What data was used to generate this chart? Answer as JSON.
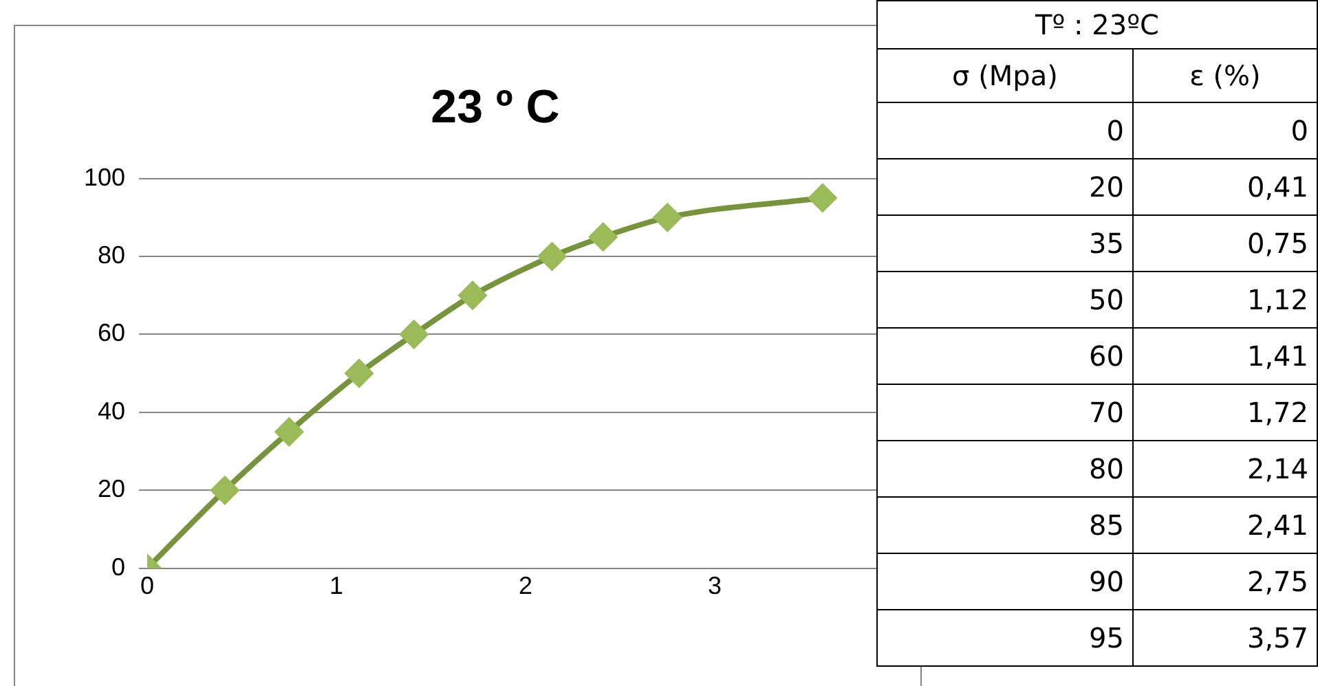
{
  "chart_data": [
    {
      "type": "line",
      "title": "23 º C",
      "x": [
        0,
        0.41,
        0.75,
        1.12,
        1.41,
        1.72,
        2.14,
        2.41,
        2.75,
        3.57
      ],
      "series": [
        {
          "color": "#9bbb59",
          "values": [
            0,
            20,
            35,
            50,
            60,
            70,
            80,
            85,
            90,
            95
          ]
        }
      ],
      "xlim": [
        0,
        4
      ],
      "xticks": [
        0,
        1,
        2,
        3
      ],
      "ylim": [
        0,
        100
      ],
      "yticks": [
        0,
        20,
        40,
        60,
        80,
        100
      ],
      "grid": "y",
      "legend": false,
      "marker": "diamond",
      "line_style": "solid"
    },
    {
      "type": "other",
      "title": "Tº : 23ºC",
      "categories": [
        "σ (Mpa)",
        "ε (%)"
      ],
      "annotations": [
        "0",
        "0",
        "20",
        "0,41",
        "35",
        "0,75",
        "50",
        "1,12",
        "60",
        "1,41",
        "70",
        "1,72",
        "80",
        "2,14",
        "85",
        "2,41",
        "90",
        "2,75",
        "95",
        "3,57"
      ]
    }
  ]
}
